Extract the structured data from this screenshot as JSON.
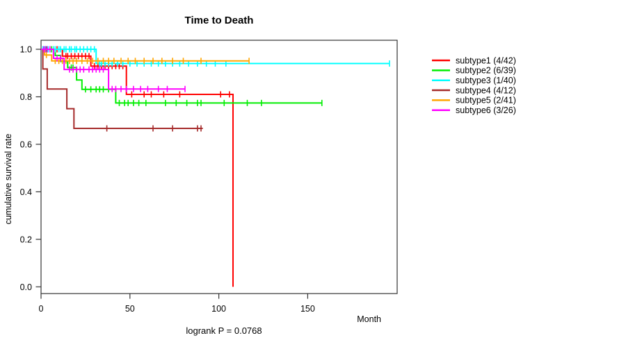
{
  "chart_data": {
    "type": "line",
    "subtype": "kaplan-meier-step",
    "title": "Time to Death",
    "xlabel": "Month",
    "ylabel": "cumulative survival rate",
    "annotation": "logrank P = 0.0768",
    "xlim": [
      0,
      203
    ],
    "ylim": [
      0.0,
      1.0
    ],
    "xticks": [
      0,
      50,
      100,
      150
    ],
    "yticks": [
      0.0,
      0.2,
      0.4,
      0.6,
      0.8,
      1.0
    ],
    "ytick_labels": [
      "0.0",
      "0.2",
      "0.4",
      "0.6",
      "0.8",
      "1.0"
    ],
    "grid": false,
    "legend_position": "right",
    "series": [
      {
        "name": "subtype1",
        "label": "subtype1 (4/42)",
        "events": "4/42",
        "color": "#ff0000",
        "steps": [
          [
            12,
            0.971
          ],
          [
            28,
            0.929
          ],
          [
            48,
            0.81
          ],
          [
            108,
            0.0
          ]
        ],
        "end": 108,
        "censors": [
          [
            3,
            1
          ],
          [
            5,
            1
          ],
          [
            9,
            1
          ],
          [
            14,
            0.971
          ],
          [
            15,
            0.971
          ],
          [
            17,
            0.971
          ],
          [
            19,
            0.971
          ],
          [
            21,
            0.971
          ],
          [
            23,
            0.971
          ],
          [
            25,
            0.971
          ],
          [
            27,
            0.971
          ],
          [
            30,
            0.929
          ],
          [
            32,
            0.929
          ],
          [
            34,
            0.929
          ],
          [
            36,
            0.929
          ],
          [
            38,
            0.929
          ],
          [
            40,
            0.929
          ],
          [
            42,
            0.929
          ],
          [
            44,
            0.929
          ],
          [
            46,
            0.929
          ],
          [
            51,
            0.81
          ],
          [
            58,
            0.81
          ],
          [
            62,
            0.81
          ],
          [
            69,
            0.81
          ],
          [
            78,
            0.81
          ],
          [
            101,
            0.81
          ],
          [
            106,
            0.81
          ]
        ]
      },
      {
        "name": "subtype2",
        "label": "subtype2 (6/39)",
        "events": "6/39",
        "color": "#00ee00",
        "steps": [
          [
            8,
            0.974
          ],
          [
            11,
            0.949
          ],
          [
            15,
            0.923
          ],
          [
            20,
            0.871
          ],
          [
            23,
            0.831
          ],
          [
            42,
            0.774
          ]
        ],
        "end": 158,
        "censors": [
          [
            3,
            1
          ],
          [
            6,
            1
          ],
          [
            17,
            0.923
          ],
          [
            18,
            0.923
          ],
          [
            25,
            0.831
          ],
          [
            28,
            0.831
          ],
          [
            31,
            0.831
          ],
          [
            33,
            0.831
          ],
          [
            35,
            0.831
          ],
          [
            38,
            0.831
          ],
          [
            44,
            0.774
          ],
          [
            47,
            0.774
          ],
          [
            49,
            0.774
          ],
          [
            52,
            0.774
          ],
          [
            55,
            0.774
          ],
          [
            59,
            0.774
          ],
          [
            70,
            0.774
          ],
          [
            76,
            0.774
          ],
          [
            82,
            0.774
          ],
          [
            88,
            0.774
          ],
          [
            90,
            0.774
          ],
          [
            103,
            0.774
          ],
          [
            116,
            0.774
          ],
          [
            124,
            0.774
          ],
          [
            158,
            0.774
          ]
        ]
      },
      {
        "name": "subtype3",
        "label": "subtype3 (1/40)",
        "events": "1/40",
        "color": "#00ffff",
        "steps": [
          [
            31,
            0.94
          ]
        ],
        "end": 196,
        "censors": [
          [
            1,
            1
          ],
          [
            2,
            1
          ],
          [
            4,
            1
          ],
          [
            5,
            1
          ],
          [
            7,
            1
          ],
          [
            8,
            1
          ],
          [
            10,
            1
          ],
          [
            11,
            1
          ],
          [
            13,
            1
          ],
          [
            14,
            1
          ],
          [
            16,
            1
          ],
          [
            17,
            1
          ],
          [
            19,
            1
          ],
          [
            20,
            1
          ],
          [
            22,
            1
          ],
          [
            24,
            1
          ],
          [
            26,
            1
          ],
          [
            28,
            1
          ],
          [
            30,
            1
          ],
          [
            33,
            0.94
          ],
          [
            34,
            0.94
          ],
          [
            36,
            0.94
          ],
          [
            38,
            0.94
          ],
          [
            40,
            0.94
          ],
          [
            43,
            0.94
          ],
          [
            46,
            0.94
          ],
          [
            50,
            0.94
          ],
          [
            54,
            0.94
          ],
          [
            58,
            0.94
          ],
          [
            62,
            0.94
          ],
          [
            66,
            0.94
          ],
          [
            70,
            0.94
          ],
          [
            74,
            0.94
          ],
          [
            78,
            0.94
          ],
          [
            83,
            0.94
          ],
          [
            88,
            0.94
          ],
          [
            93,
            0.94
          ],
          [
            98,
            0.94
          ],
          [
            104,
            0.94
          ],
          [
            196,
            0.94
          ]
        ]
      },
      {
        "name": "subtype4",
        "label": "subtype4 (4/12)",
        "events": "4/12",
        "color": "#a52a2a",
        "steps": [
          [
            1,
            0.917
          ],
          [
            3.5,
            0.833
          ],
          [
            14.5,
            0.75
          ],
          [
            18.5,
            0.667
          ]
        ],
        "end": 91,
        "censors": [
          [
            37,
            0.667
          ],
          [
            63,
            0.667
          ],
          [
            74,
            0.667
          ],
          [
            88,
            0.667
          ],
          [
            90,
            0.667
          ]
        ]
      },
      {
        "name": "subtype5",
        "label": "subtype5 (2/41)",
        "events": "2/41",
        "color": "#ffa500",
        "steps": [
          [
            2,
            0.976
          ],
          [
            6,
            0.951
          ]
        ],
        "end": 117,
        "censors": [
          [
            3,
            0.976
          ],
          [
            8,
            0.951
          ],
          [
            10,
            0.951
          ],
          [
            12,
            0.951
          ],
          [
            14,
            0.951
          ],
          [
            16,
            0.951
          ],
          [
            18,
            0.951
          ],
          [
            20,
            0.951
          ],
          [
            23,
            0.951
          ],
          [
            26,
            0.951
          ],
          [
            29,
            0.951
          ],
          [
            32,
            0.951
          ],
          [
            35,
            0.951
          ],
          [
            38,
            0.951
          ],
          [
            41,
            0.951
          ],
          [
            45,
            0.951
          ],
          [
            49,
            0.951
          ],
          [
            53,
            0.951
          ],
          [
            58,
            0.951
          ],
          [
            63,
            0.951
          ],
          [
            68,
            0.951
          ],
          [
            74,
            0.951
          ],
          [
            80,
            0.951
          ],
          [
            90,
            0.951
          ],
          [
            117,
            0.951
          ]
        ]
      },
      {
        "name": "subtype6",
        "label": "subtype6 (3/26)",
        "events": "3/26",
        "color": "#ff00ff",
        "steps": [
          [
            7,
            0.962
          ],
          [
            13,
            0.915
          ],
          [
            38,
            0.833
          ]
        ],
        "end": 81,
        "censors": [
          [
            1.5,
            1
          ],
          [
            2.5,
            1
          ],
          [
            3.5,
            1
          ],
          [
            5,
            1
          ],
          [
            9,
            0.962
          ],
          [
            11,
            0.962
          ],
          [
            16,
            0.915
          ],
          [
            18,
            0.915
          ],
          [
            20,
            0.915
          ],
          [
            22,
            0.915
          ],
          [
            24,
            0.915
          ],
          [
            27,
            0.915
          ],
          [
            29,
            0.915
          ],
          [
            31,
            0.915
          ],
          [
            33,
            0.915
          ],
          [
            35,
            0.915
          ],
          [
            40,
            0.833
          ],
          [
            42,
            0.833
          ],
          [
            45,
            0.833
          ],
          [
            48,
            0.833
          ],
          [
            52,
            0.833
          ],
          [
            56,
            0.833
          ],
          [
            60,
            0.833
          ],
          [
            66,
            0.833
          ],
          [
            71,
            0.833
          ],
          [
            81,
            0.833
          ]
        ]
      }
    ]
  }
}
